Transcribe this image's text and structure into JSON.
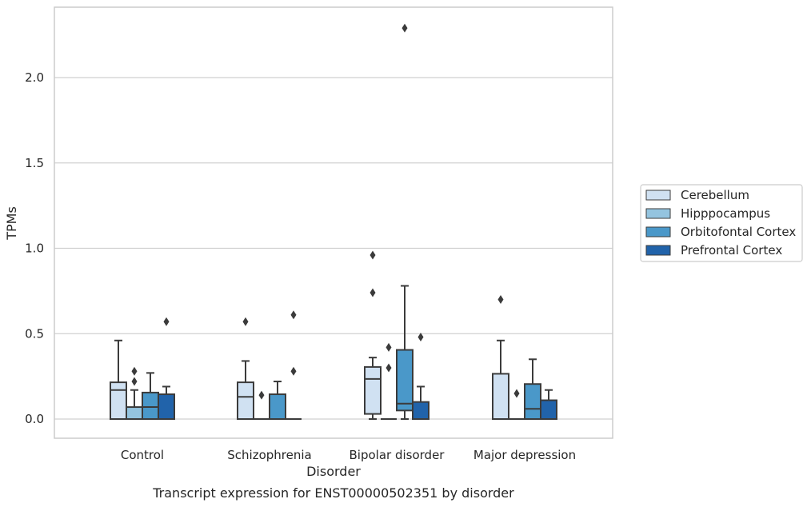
{
  "chart_data": {
    "type": "boxplot",
    "title": "",
    "xlabel": "Disorder",
    "ylabel": "TPMs",
    "caption": "Transcript expression for ENST00000502351 by disorder",
    "ylim": [
      -0.11,
      2.42
    ],
    "yticks": [
      0.0,
      0.5,
      1.0,
      1.5,
      2.0
    ],
    "ytick_labels": [
      "0.0",
      "0.5",
      "1.0",
      "1.5",
      "2.0"
    ],
    "grid": "horizontal",
    "legend_position": "right",
    "categories": [
      "Control",
      "Schizophrenia",
      "Bipolar disorder",
      "Major depression"
    ],
    "series": [
      {
        "name": "Cerebellum",
        "color": "#d0e1f2",
        "boxes": [
          {
            "whisker_low": 0.0,
            "q1": 0.0,
            "median": 0.17,
            "q3": 0.215,
            "whisker_high": 0.46,
            "outliers": []
          },
          {
            "whisker_low": 0.0,
            "q1": 0.0,
            "median": 0.13,
            "q3": 0.215,
            "whisker_high": 0.34,
            "outliers": [
              0.57
            ]
          },
          {
            "whisker_low": 0.0,
            "q1": 0.03,
            "median": 0.235,
            "q3": 0.305,
            "whisker_high": 0.36,
            "outliers": [
              0.74,
              0.96
            ]
          },
          {
            "whisker_low": 0.0,
            "q1": 0.0,
            "median": 0.0,
            "q3": 0.265,
            "whisker_high": 0.46,
            "outliers": [
              0.7
            ]
          }
        ]
      },
      {
        "name": "Hipppocampus",
        "color": "#94c4df",
        "boxes": [
          {
            "whisker_low": 0.0,
            "q1": 0.0,
            "median": 0.0,
            "q3": 0.07,
            "whisker_high": 0.17,
            "outliers": [
              0.22,
              0.28
            ]
          },
          {
            "whisker_low": 0.0,
            "q1": 0.0,
            "median": 0.0,
            "q3": 0.0,
            "whisker_high": 0.0,
            "outliers": [
              0.14
            ]
          },
          {
            "whisker_low": 0.0,
            "q1": 0.0,
            "median": 0.0,
            "q3": 0.0,
            "whisker_high": 0.0,
            "outliers": [
              0.3,
              0.42
            ]
          },
          {
            "whisker_low": 0.0,
            "q1": 0.0,
            "median": 0.0,
            "q3": 0.0,
            "whisker_high": 0.0,
            "outliers": [
              0.15
            ]
          }
        ]
      },
      {
        "name": "Orbitofontal Cortex",
        "color": "#4a98c9",
        "boxes": [
          {
            "whisker_low": 0.0,
            "q1": 0.0,
            "median": 0.07,
            "q3": 0.155,
            "whisker_high": 0.27,
            "outliers": []
          },
          {
            "whisker_low": 0.0,
            "q1": 0.0,
            "median": 0.0,
            "q3": 0.145,
            "whisker_high": 0.22,
            "outliers": []
          },
          {
            "whisker_low": 0.0,
            "q1": 0.05,
            "median": 0.09,
            "q3": 0.405,
            "whisker_high": 0.78,
            "outliers": [
              2.29
            ]
          },
          {
            "whisker_low": 0.0,
            "q1": 0.0,
            "median": 0.06,
            "q3": 0.205,
            "whisker_high": 0.35,
            "outliers": []
          }
        ]
      },
      {
        "name": "Prefrontal Cortex",
        "color": "#2163aa",
        "boxes": [
          {
            "whisker_low": 0.0,
            "q1": 0.0,
            "median": 0.0,
            "q3": 0.145,
            "whisker_high": 0.19,
            "outliers": [
              0.57
            ]
          },
          {
            "whisker_low": 0.0,
            "q1": 0.0,
            "median": 0.0,
            "q3": 0.0,
            "whisker_high": 0.0,
            "outliers": [
              0.28,
              0.61
            ]
          },
          {
            "whisker_low": 0.0,
            "q1": 0.0,
            "median": 0.0,
            "q3": 0.1,
            "whisker_high": 0.19,
            "outliers": [
              0.48
            ]
          },
          {
            "whisker_low": 0.0,
            "q1": 0.0,
            "median": 0.0,
            "q3": 0.11,
            "whisker_high": 0.17,
            "outliers": []
          }
        ]
      }
    ]
  }
}
